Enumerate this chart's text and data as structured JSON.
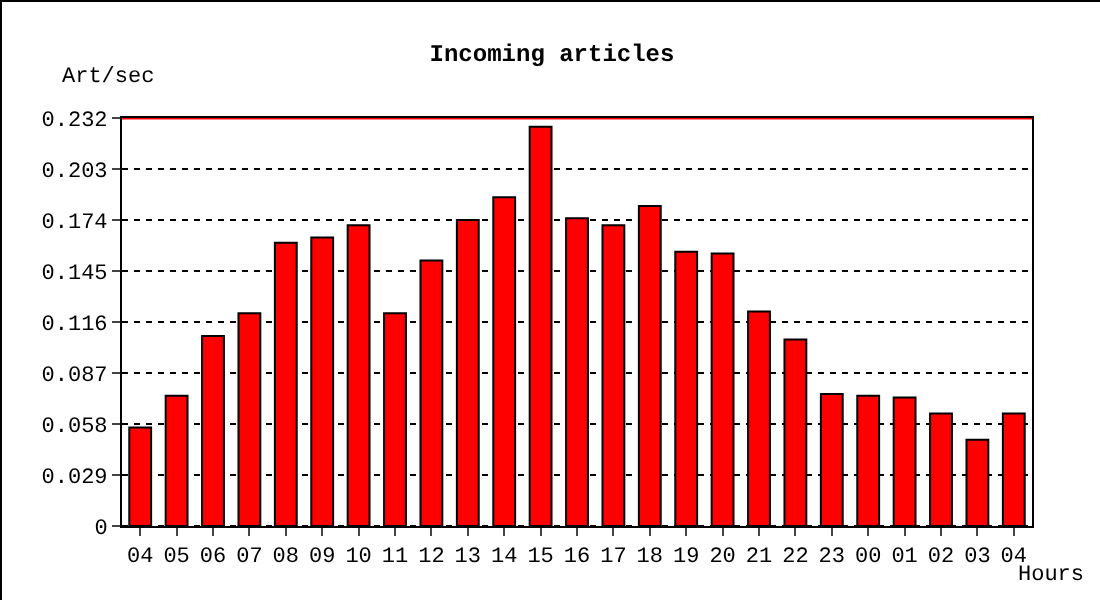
{
  "chart_data": {
    "type": "bar",
    "title": "Incoming articles",
    "ylabel": "Art/sec",
    "xlabel": "Hours",
    "categories": [
      "04",
      "05",
      "06",
      "07",
      "08",
      "09",
      "10",
      "11",
      "12",
      "13",
      "14",
      "15",
      "16",
      "17",
      "18",
      "19",
      "20",
      "21",
      "22",
      "23",
      "00",
      "01",
      "02",
      "03",
      "04"
    ],
    "values": [
      0.056,
      0.074,
      0.108,
      0.121,
      0.161,
      0.164,
      0.171,
      0.121,
      0.151,
      0.174,
      0.187,
      0.227,
      0.175,
      0.171,
      0.182,
      0.156,
      0.155,
      0.122,
      0.106,
      0.075,
      0.074,
      0.073,
      0.064,
      0.049,
      0.064
    ],
    "color": "#ff0000",
    "ylim": [
      0,
      0.232
    ],
    "yticks": [
      0,
      0.029,
      0.058,
      0.087,
      0.116,
      0.145,
      0.174,
      0.203,
      0.232
    ],
    "grid": "y",
    "ref_lines": [
      {
        "axis": "y",
        "value": 0.232,
        "color": "#ff0000",
        "line_style": "solid"
      }
    ]
  }
}
